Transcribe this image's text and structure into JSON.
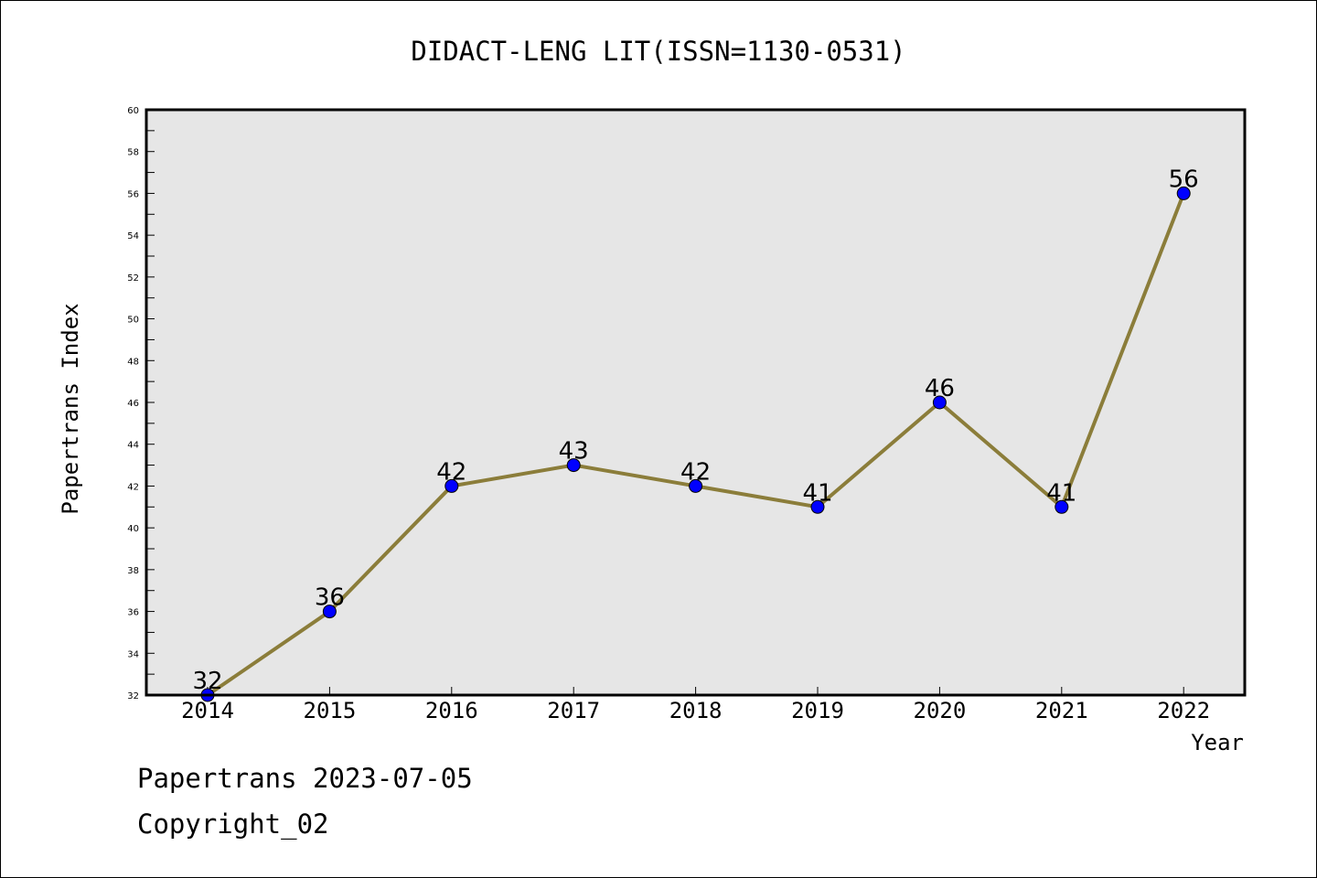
{
  "chart_data": {
    "type": "line",
    "title": "DIDACT-LENG LIT(ISSN=1130-0531)",
    "xlabel": "Year",
    "ylabel": "Papertrans Index",
    "x": [
      "2014",
      "2015",
      "2016",
      "2017",
      "2018",
      "2019",
      "2020",
      "2021",
      "2022"
    ],
    "series": [
      {
        "values": [
          32,
          36,
          42,
          43,
          42,
          41,
          46,
          41,
          56
        ]
      }
    ],
    "data_labels": [
      "32",
      "36",
      "42",
      "43",
      "42",
      "41",
      "46",
      "41",
      "56"
    ],
    "ylim": [
      32,
      60
    ],
    "yticks": [
      "32",
      "34",
      "36",
      "38",
      "40",
      "42",
      "44",
      "46",
      "48",
      "50",
      "52",
      "54",
      "56",
      "58",
      "60"
    ],
    "grid": false,
    "legend": "none",
    "colors": {
      "line": "#8b7d3a",
      "marker_fill": "#0000ff",
      "marker_edge": "#000000",
      "plot_background": "#e6e6e6"
    }
  },
  "footer": {
    "line1": "Papertrans 2023-07-05",
    "line2": "Copyright_02"
  }
}
